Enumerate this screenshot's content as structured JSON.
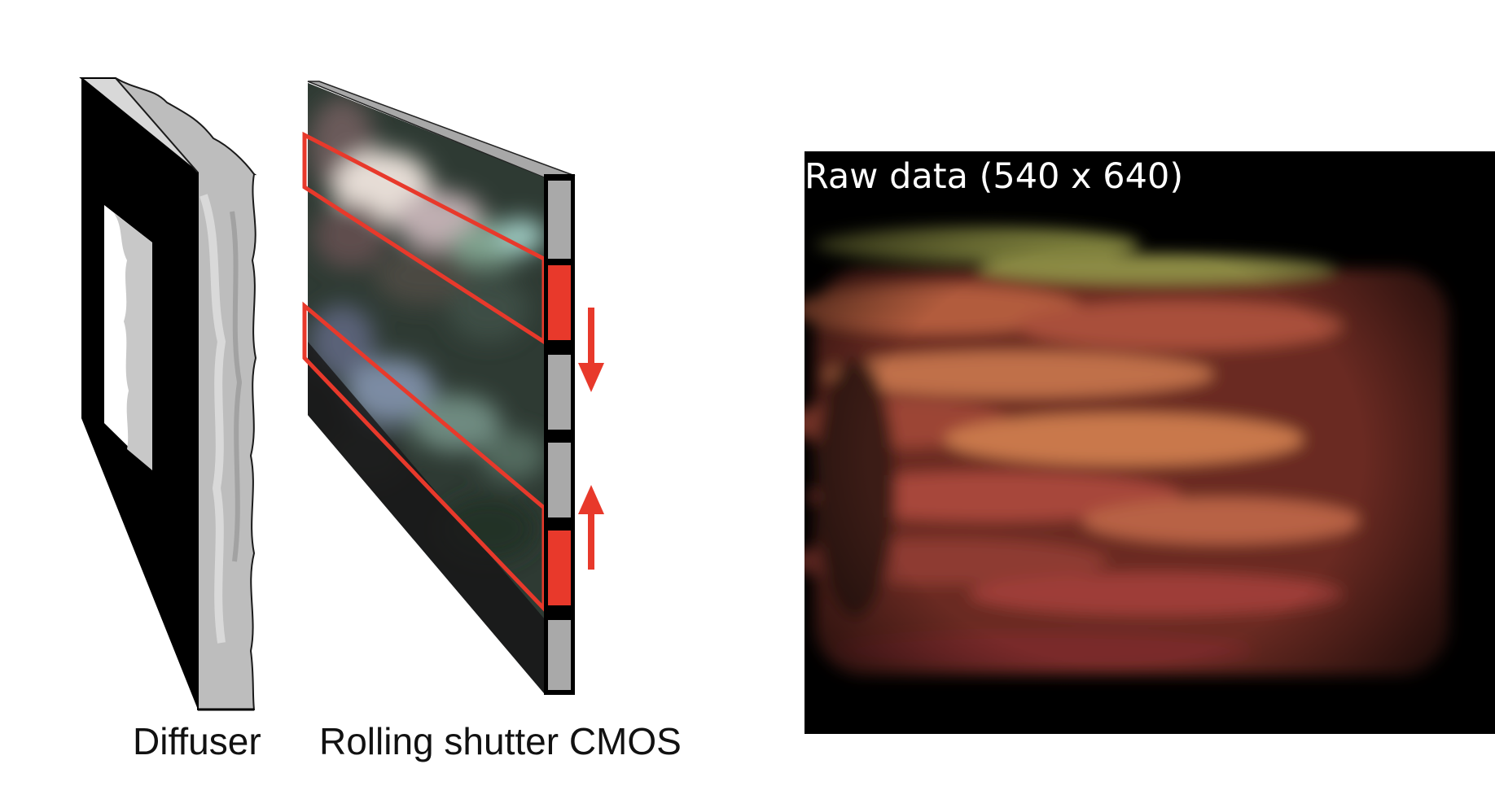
{
  "labels": {
    "diffuser": "Diffuser",
    "sensor": "Rolling shutter CMOS"
  },
  "raw_image": {
    "title": "Raw data (540 x 640)"
  },
  "colors": {
    "highlight": "#e8392b",
    "frame": "#111111",
    "pixel": "#a9a9a9",
    "diffuser_surface": "#c9c9c9"
  },
  "icons": {
    "arrow_down": "arrow-down-icon",
    "arrow_up": "arrow-up-icon"
  }
}
